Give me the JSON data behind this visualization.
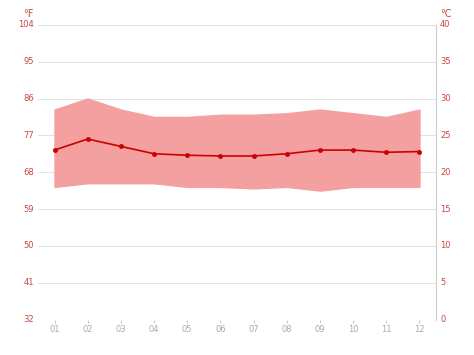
{
  "months": [
    1,
    2,
    3,
    4,
    5,
    6,
    7,
    8,
    9,
    10,
    11,
    12
  ],
  "month_labels": [
    "01",
    "02",
    "03",
    "04",
    "05",
    "06",
    "07",
    "08",
    "09",
    "10",
    "11",
    "12"
  ],
  "avg_temp_c": [
    23.0,
    24.5,
    23.5,
    22.5,
    22.3,
    22.2,
    22.2,
    22.5,
    23.0,
    23.0,
    22.7,
    22.8
  ],
  "max_temp_c": [
    28.5,
    30.0,
    28.5,
    27.5,
    27.5,
    27.8,
    27.8,
    28.0,
    28.5,
    28.0,
    27.5,
    28.5
  ],
  "min_temp_c": [
    18.0,
    18.5,
    18.5,
    18.5,
    18.0,
    18.0,
    17.8,
    18.0,
    17.5,
    18.0,
    18.0,
    18.0
  ],
  "ylim_c_min": 0,
  "ylim_c_max": 40,
  "yticks_c": [
    0,
    5,
    10,
    15,
    20,
    25,
    30,
    35,
    40
  ],
  "ytick_labels_c": [
    "0",
    "5",
    "10",
    "15",
    "20",
    "25",
    "30",
    "35",
    "40"
  ],
  "ytick_labels_f": [
    "32",
    "41",
    "50",
    "59",
    "68",
    "77",
    "86",
    "95",
    "104"
  ],
  "band_color": "#f5a0a0",
  "line_color": "#cc0000",
  "grid_color": "#dddddd",
  "background_color": "#ffffff",
  "ylabel_left": "°F",
  "ylabel_right": "°C",
  "tick_fontsize": 6,
  "label_fontsize": 7,
  "line_width": 1.2,
  "marker_size": 3
}
